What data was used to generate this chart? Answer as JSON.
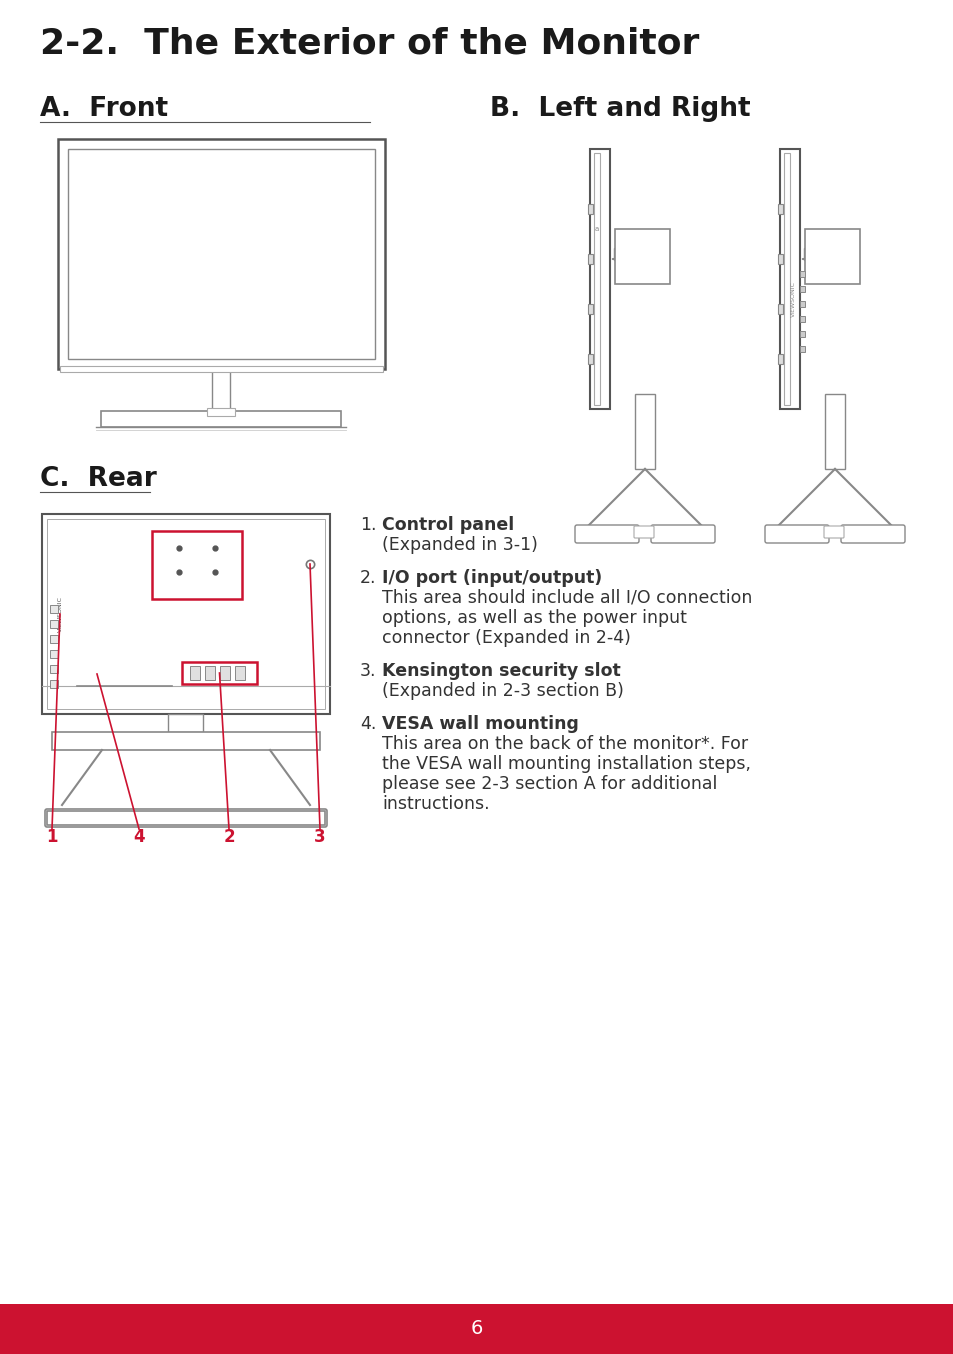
{
  "title": "2-2.  The Exterior of the Monitor",
  "title_fontsize": 26,
  "title_color": "#1a1a1a",
  "section_a_label": "A.  Front",
  "section_b_label": "B.  Left and Right",
  "section_c_label": "C.  Rear",
  "bg_color": "#ffffff",
  "footer_color": "#cc1230",
  "footer_text": "6",
  "footer_text_color": "#ffffff",
  "line_color": "#555555",
  "callout_color": "#cc1230",
  "text_color": "#333333"
}
